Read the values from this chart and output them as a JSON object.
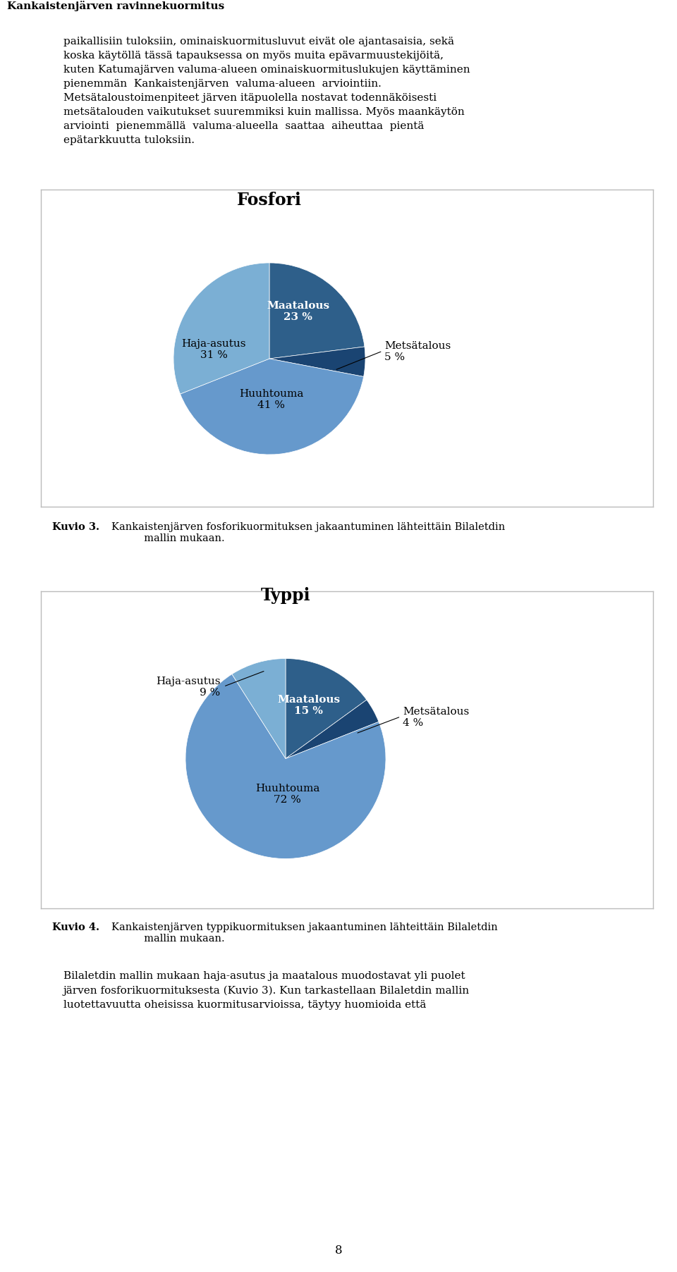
{
  "page_title": "Kankaistenjärven ravinnekuormitus",
  "header_bar_color": "#888888",
  "body_text_lines": [
    "paikallisiin tuloksiin, ominaiskuormitusluvut eivät ole ajantasaisia, sekä",
    "koska käytöllä tässä tapauksessa on myös muita epävarmuustekijöitä,",
    "kuten Katumajärven valuma-alueen ominaiskuormituslukujen käyttäminen",
    "pienemmän  Kankaistenjärven  valuma-alueen  arviointiin.",
    "Metsätaloustoimenpiteet järven itäpuolella nostavat todennäköisesti",
    "metsätalouden vaikutukset suuremmiksi kuin mallissa. Myös maankäytön",
    "arviointi  pienemmällä  valuma-alueella  saattaa  aiheuttaa  pientä",
    "epätarkkuutta tuloksiin."
  ],
  "pie1_title": "Fosfori",
  "pie1_values": [
    23,
    5,
    41,
    31
  ],
  "pie1_colors": [
    "#2e5f8a",
    "#1a4472",
    "#6699cc",
    "#7bafd4"
  ],
  "pie1_labels_text": [
    "Maatalous\n23 %",
    "Metsätalous\n5 %",
    "Huuhtouma\n41 %",
    "Haja-asutus\n31 %"
  ],
  "pie1_caption_num": "Kuvio 3.",
  "pie1_caption_txt": "Kankaistenjärven fosforikuormituksen jakaantuminen lähteittäin Bilaletdin\n          mallin mukaan.",
  "pie2_title": "Typpi",
  "pie2_values": [
    15,
    4,
    72,
    9
  ],
  "pie2_colors": [
    "#2e5f8a",
    "#1a4472",
    "#6699cc",
    "#7bafd4"
  ],
  "pie2_labels_text": [
    "Maatalous\n15 %",
    "Metsätalous\n4 %",
    "Huuhtouma\n72 %",
    "Haja-asutus\n9 %"
  ],
  "pie2_caption_num": "Kuvio 4.",
  "pie2_caption_txt": "Kankaistenjärven typpikuormituksen jakaantuminen lähteittäin Bilaletdin\n          mallin mukaan.",
  "footer_text": "Bilaletdin mallin mukaan haja-asutus ja maatalous muodostavat yli puolet\njärven fosforikuormituksesta (Kuvio 3). Kun tarkastellaan Bilaletdin mallin\nluotettavuutta oheisissa kuormitusarvioissa, täytyy huomioida että",
  "page_number": "8",
  "bg": "#ffffff",
  "box_border": "#bbbbbb",
  "text_color": "#000000",
  "body_fontsize": 11,
  "pie_title_fontsize": 17,
  "label_fontsize": 11,
  "caption_fontsize": 10.5
}
